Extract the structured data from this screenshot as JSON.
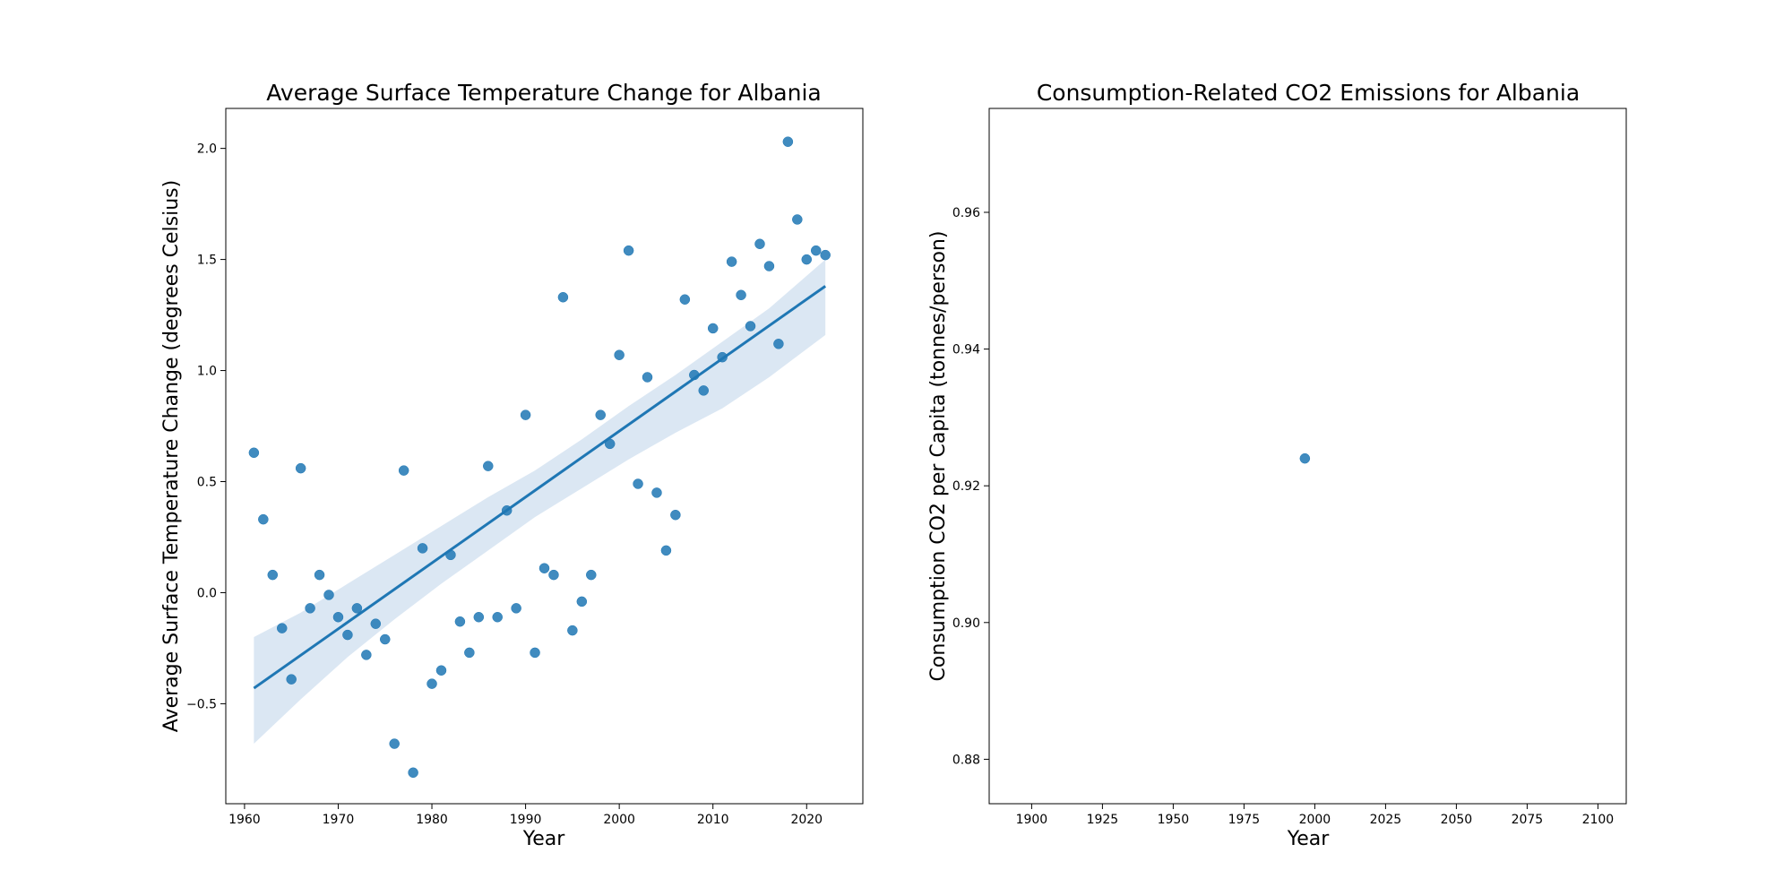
{
  "chart_data": [
    {
      "type": "scatter",
      "title": "Average Surface Temperature Change for Albania",
      "xlabel": "Year",
      "ylabel": "Average Surface Temperature Change (degrees Celsius)",
      "xlim": [
        1958,
        2026
      ],
      "ylim": [
        -0.95,
        2.18
      ],
      "xticks": [
        "1960",
        "1970",
        "1980",
        "1990",
        "2000",
        "2010",
        "2020"
      ],
      "yticks": [
        "−0.5",
        "0.0",
        "0.5",
        "1.0",
        "1.5",
        "2.0"
      ],
      "x": [
        1961,
        1962,
        1963,
        1964,
        1965,
        1966,
        1967,
        1968,
        1969,
        1970,
        1971,
        1972,
        1973,
        1974,
        1975,
        1976,
        1977,
        1978,
        1979,
        1980,
        1981,
        1982,
        1983,
        1984,
        1985,
        1986,
        1987,
        1988,
        1989,
        1990,
        1991,
        1992,
        1993,
        1994,
        1995,
        1996,
        1997,
        1998,
        1999,
        2000,
        2001,
        2002,
        2003,
        2004,
        2005,
        2006,
        2007,
        2008,
        2009,
        2010,
        2011,
        2012,
        2013,
        2014,
        2015,
        2016,
        2017,
        2018,
        2019,
        2020,
        2021,
        2022
      ],
      "y": [
        0.63,
        0.33,
        0.08,
        -0.16,
        -0.39,
        0.56,
        -0.07,
        0.08,
        -0.01,
        -0.11,
        -0.19,
        -0.07,
        -0.28,
        -0.14,
        -0.21,
        -0.68,
        0.55,
        -0.81,
        0.2,
        -0.41,
        -0.35,
        0.17,
        -0.13,
        -0.27,
        -0.11,
        0.57,
        -0.11,
        0.37,
        -0.07,
        0.8,
        -0.27,
        0.11,
        0.08,
        1.33,
        -0.17,
        -0.04,
        0.08,
        0.8,
        0.67,
        1.07,
        1.54,
        0.49,
        0.97,
        0.45,
        0.19,
        0.35,
        1.32,
        0.98,
        0.91,
        1.19,
        1.06,
        1.49,
        1.34,
        1.2,
        1.57,
        1.47,
        1.12,
        2.03,
        1.68,
        1.5,
        1.54,
        1.52
      ],
      "regression": {
        "x": [
          1961,
          2022
        ],
        "y": [
          -0.43,
          1.38
        ]
      },
      "ci_band": {
        "x": [
          1961,
          1966,
          1971,
          1976,
          1981,
          1986,
          1991,
          1996,
          2001,
          2006,
          2011,
          2016,
          2022
        ],
        "lower": [
          -0.68,
          -0.48,
          -0.29,
          -0.12,
          0.04,
          0.19,
          0.34,
          0.47,
          0.6,
          0.72,
          0.83,
          0.97,
          1.16
        ],
        "upper": [
          -0.2,
          -0.09,
          0.04,
          0.17,
          0.3,
          0.43,
          0.55,
          0.69,
          0.84,
          0.98,
          1.13,
          1.28,
          1.5
        ]
      },
      "color": "#1f77b4",
      "band_color": "#dbe7f3"
    },
    {
      "type": "scatter",
      "title": "Consumption-Related CO2 Emissions for Albania",
      "xlabel": "Year",
      "ylabel": "Consumption CO2 per Capita (tonnes/person)",
      "xlim": [
        1885,
        2110
      ],
      "ylim": [
        0.8735,
        0.9752
      ],
      "xticks": [
        "1900",
        "1925",
        "1950",
        "1975",
        "2000",
        "2025",
        "2050",
        "2075",
        "2100"
      ],
      "yticks": [
        "0.88",
        "0.90",
        "0.92",
        "0.94",
        "0.96"
      ],
      "x": [
        1996.5
      ],
      "y": [
        0.924
      ],
      "color": "#1f77b4"
    }
  ]
}
